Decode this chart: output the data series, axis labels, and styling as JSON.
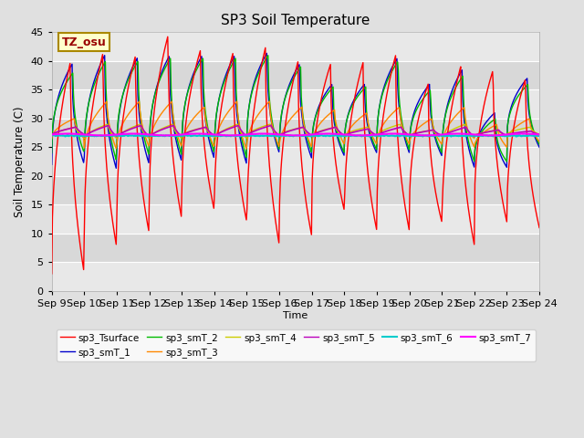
{
  "title": "SP3 Soil Temperature",
  "ylabel": "Soil Temperature (C)",
  "xlabel": "Time",
  "annotation": "TZ_osu",
  "ylim": [
    0,
    45
  ],
  "series_colors": {
    "sp3_Tsurface": "#FF0000",
    "sp3_smT_1": "#0000CC",
    "sp3_smT_2": "#00BB00",
    "sp3_smT_3": "#FF8800",
    "sp3_smT_4": "#CCCC00",
    "sp3_smT_5": "#BB00BB",
    "sp3_smT_6": "#00CCCC",
    "sp3_smT_7": "#FF00FF"
  },
  "x_tick_labels": [
    "Sep 9",
    "Sep 10",
    "Sep 11",
    "Sep 12",
    "Sep 13",
    "Sep 14",
    "Sep 15",
    "Sep 16",
    "Sep 17",
    "Sep 18",
    "Sep 19",
    "Sep 20",
    "Sep 21",
    "Sep 22",
    "Sep 23",
    "Sep 24"
  ],
  "background_color": "#E0E0E0",
  "plot_bg_color": "#E8E8E8",
  "grid_color": "#FFFFFF",
  "band_colors": [
    "#DCDCDC",
    "#E8E8E8"
  ],
  "figsize": [
    6.4,
    4.8
  ],
  "dpi": 100
}
